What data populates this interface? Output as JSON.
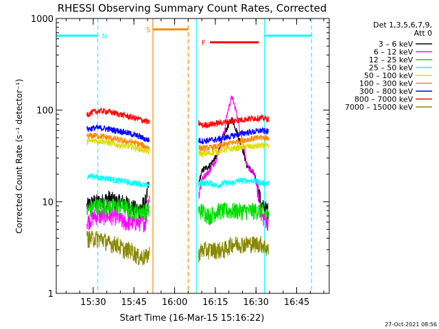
{
  "chart_data": {
    "type": "line",
    "title": "RHESSI Observing Summary Count Rates, Corrected",
    "xlabel": "Start Time (16-Mar-15 15:16:22)",
    "ylabel": "Corrected Count Rate (s⁻¹ detector⁻¹)",
    "yscale": "log",
    "xlim": [
      "15:16:22",
      "16:57:00"
    ],
    "ylim": [
      1,
      1000
    ],
    "xticks": [
      "15:30",
      "15:45",
      "16:00",
      "16:15",
      "16:30",
      "16:45"
    ],
    "yticks": [
      1,
      10,
      100,
      1000
    ],
    "detector_label": "Det 1,3,5,6,7,9,",
    "attenuator_label": "Att 0",
    "timestamp": "27-Oct-2021 08:56",
    "segments": [
      {
        "start": "15:27:40",
        "end": "15:50:40"
      },
      {
        "start": "16:08:50",
        "end": "16:34:40"
      }
    ],
    "series": [
      {
        "name": "3 – 6 keV",
        "color": "#000000",
        "values": [
          9,
          10,
          10,
          11,
          10,
          10,
          9,
          8,
          10,
          22,
          25,
          32,
          55,
          80,
          48,
          25,
          20,
          9,
          8
        ]
      },
      {
        "name": "6 – 12 keV",
        "color": "#ff00ff",
        "values": [
          6,
          7,
          7,
          7,
          7,
          6,
          6,
          6,
          6,
          18,
          22,
          30,
          60,
          140,
          65,
          25,
          20,
          7,
          6
        ]
      },
      {
        "name": "12 – 25 keV",
        "color": "#00dd00",
        "values": [
          8,
          9,
          9,
          9,
          9,
          9,
          8,
          8,
          8,
          8,
          7,
          8,
          8,
          8,
          8,
          8,
          8,
          8,
          7
        ]
      },
      {
        "name": "25 – 50 keV",
        "color": "#00ffff",
        "values": [
          19,
          19,
          18,
          18,
          17,
          17,
          16,
          16,
          15,
          16,
          16,
          15,
          16,
          16,
          17,
          17,
          17,
          16,
          16
        ]
      },
      {
        "name": "50 – 100 keV",
        "color": "#dddd00",
        "values": [
          45,
          47,
          46,
          44,
          42,
          41,
          40,
          38,
          36,
          33,
          34,
          35,
          37,
          38,
          39,
          40,
          40,
          41,
          40
        ]
      },
      {
        "name": "100 – 300 keV",
        "color": "#ff8800",
        "values": [
          52,
          53,
          52,
          50,
          48,
          46,
          45,
          43,
          40,
          38,
          39,
          40,
          42,
          44,
          46,
          48,
          49,
          50,
          50
        ]
      },
      {
        "name": "300 – 800 keV",
        "color": "#0000ff",
        "values": [
          62,
          64,
          64,
          62,
          60,
          58,
          55,
          52,
          48,
          46,
          47,
          48,
          50,
          52,
          55,
          57,
          58,
          60,
          58
        ]
      },
      {
        "name": "800 – 7000 keV",
        "color": "#ff0000",
        "values": [
          90,
          96,
          98,
          96,
          92,
          88,
          84,
          80,
          76,
          68,
          70,
          72,
          74,
          76,
          78,
          80,
          82,
          82,
          80
        ]
      },
      {
        "name": "7000 – 15000 keV",
        "color": "#888800",
        "values": [
          4,
          4,
          4,
          3.5,
          3.5,
          3,
          3,
          2.5,
          2.5,
          3,
          3,
          3,
          3,
          3.5,
          3.5,
          3.5,
          3.5,
          3.5,
          3
        ]
      }
    ],
    "bars": [
      {
        "label": "N",
        "color": "#00ffff",
        "y": 650,
        "ranges": [
          [
            "15:16:22",
            "15:31:40"
          ],
          [
            "16:33:10",
            "16:50:30"
          ]
        ]
      },
      {
        "label": "S",
        "color": "#ff8800",
        "y": 760,
        "ranges": [
          [
            "15:52:00",
            "16:05:00"
          ]
        ]
      },
      {
        "label": "F",
        "color": "#ff0000",
        "y": 550,
        "ranges": [
          [
            "16:13:00",
            "16:31:00"
          ]
        ]
      }
    ],
    "vlines": [
      {
        "time": "15:31:40",
        "color": "#00ffff",
        "style": "dashed"
      },
      {
        "time": "15:52:00",
        "color": "#ff8800",
        "style": "solid"
      },
      {
        "time": "16:05:00",
        "color": "#ff8800",
        "style": "dashed"
      },
      {
        "time": "16:08:00",
        "color": "#00ffff",
        "style": "solid"
      },
      {
        "time": "16:33:10",
        "color": "#00ffff",
        "style": "solid"
      },
      {
        "time": "16:50:30",
        "color": "#00ffff",
        "style": "dashed"
      }
    ]
  }
}
